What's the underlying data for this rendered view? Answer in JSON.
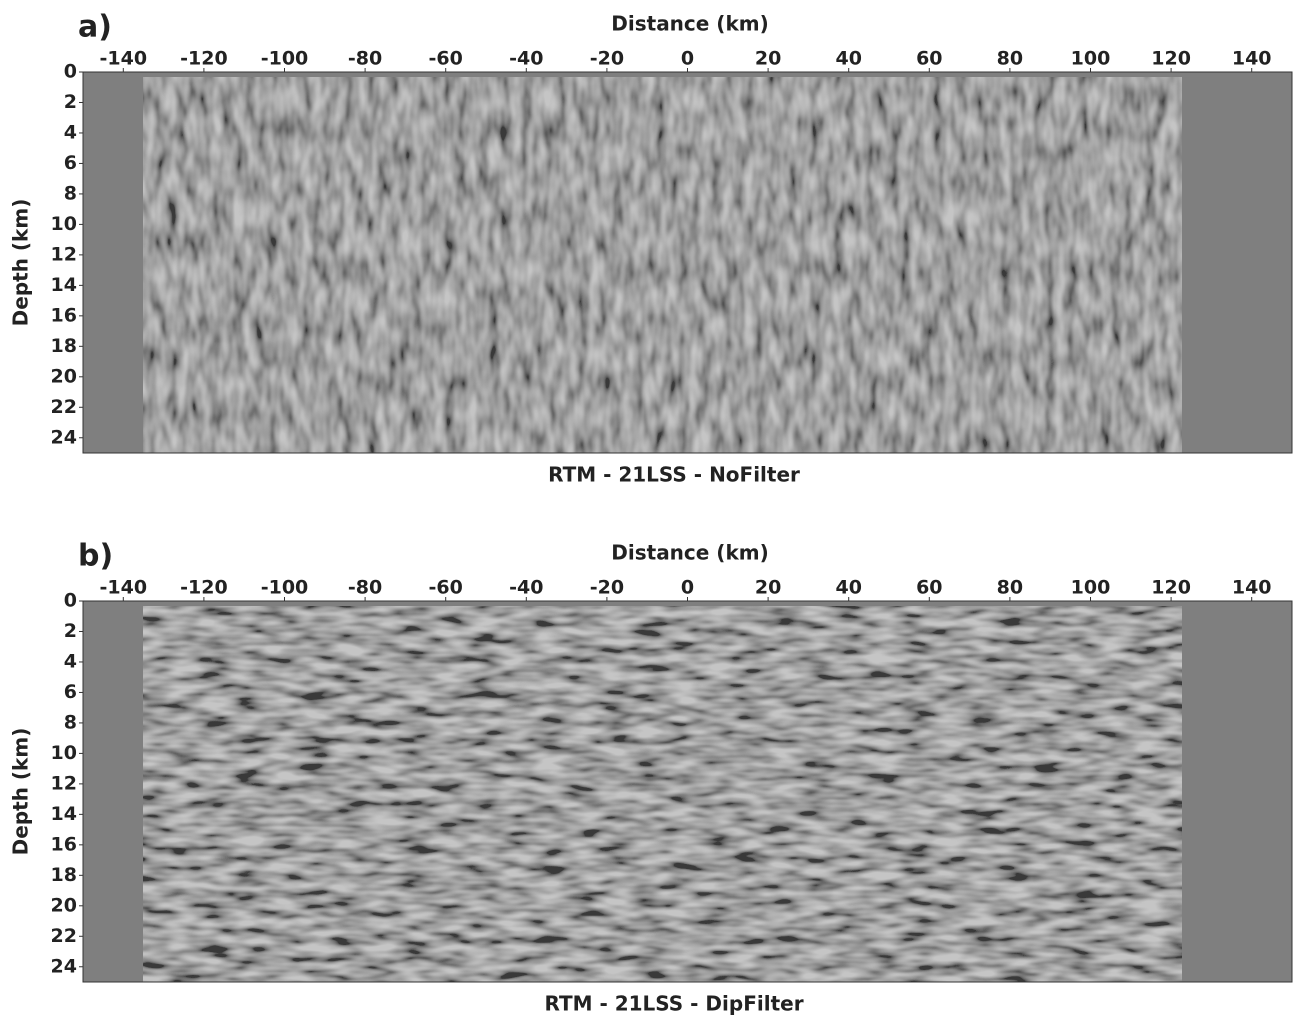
{
  "chart_data": [
    {
      "type": "image",
      "panel_label": "a)",
      "xlabel": "Distance (km)",
      "ylabel": "Depth (km)",
      "caption": "RTM - 21LSS - NoFilter",
      "xlim": [
        -150,
        150
      ],
      "xticks": [
        -140,
        -120,
        -100,
        -80,
        -60,
        -40,
        -20,
        0,
        20,
        40,
        60,
        80,
        100,
        120,
        140
      ],
      "ylim": [
        25,
        0
      ],
      "yticks": [
        0,
        2,
        4,
        6,
        8,
        10,
        12,
        14,
        16,
        18,
        20,
        22,
        24
      ]
    },
    {
      "type": "image",
      "panel_label": "b)",
      "xlabel": "Distance (km)",
      "ylabel": "Depth (km)",
      "caption": "RTM - 21LSS - DipFilter",
      "xlim": [
        -150,
        150
      ],
      "xticks": [
        -140,
        -120,
        -100,
        -80,
        -60,
        -40,
        -20,
        0,
        20,
        40,
        60,
        80,
        100,
        120,
        140
      ],
      "ylim": [
        25,
        0
      ],
      "yticks": [
        0,
        2,
        4,
        6,
        8,
        10,
        12,
        14,
        16,
        18,
        20,
        22,
        24
      ]
    }
  ]
}
